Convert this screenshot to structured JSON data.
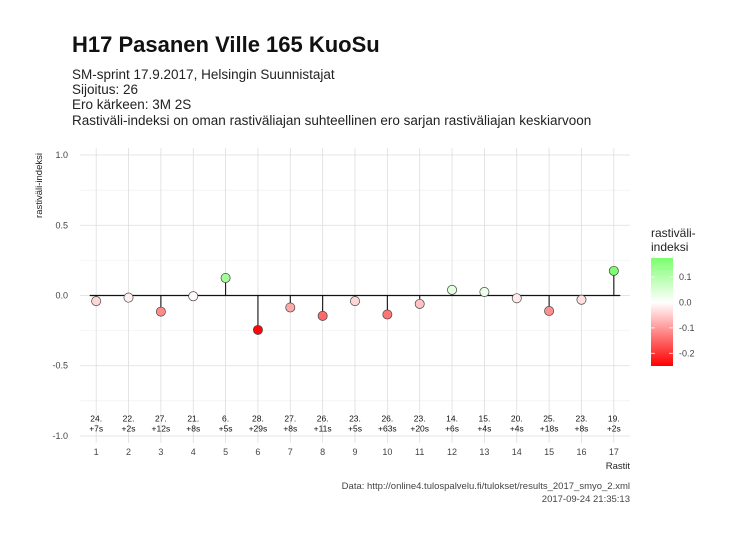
{
  "header": {
    "title": "H17 Pasanen Ville 165 KuoSu",
    "subtitle_lines": [
      "SM-sprint 17.9.2017, Helsingin Suunnistajat",
      "Sijoitus: 26",
      "Ero kärkeen: 3M 2S",
      "Rastiväli-indeksi on oman rastiväliajan suhteellinen ero sarjan rastiväliajan keskiarvoon"
    ]
  },
  "caption": {
    "source": "Data: http://online4.tulospalvelu.fi/tulokset/results_2017_smyo_2.xml",
    "timestamp": "2017-09-24 21:35:13"
  },
  "chart_data": {
    "type": "scatter",
    "style": "lollipop",
    "xlabel": "Rastit",
    "ylabel": "rastiväli-indeksi",
    "x": [
      1,
      2,
      3,
      4,
      5,
      6,
      7,
      8,
      9,
      10,
      11,
      12,
      13,
      14,
      15,
      16,
      17
    ],
    "y": [
      -0.04,
      -0.015,
      -0.115,
      -0.005,
      0.125,
      -0.245,
      -0.085,
      -0.145,
      -0.04,
      -0.135,
      -0.06,
      0.04,
      0.025,
      -0.02,
      -0.11,
      -0.03,
      0.175
    ],
    "labels_rank": [
      "24.",
      "22.",
      "27.",
      "21.",
      "6.",
      "28.",
      "27.",
      "26.",
      "23.",
      "26.",
      "23.",
      "14.",
      "15.",
      "20.",
      "25.",
      "23.",
      "19."
    ],
    "labels_diff": [
      "+7s",
      "+2s",
      "+12s",
      "+8s",
      "+5s",
      "+29s",
      "+8s",
      "+11s",
      "+5s",
      "+63s",
      "+20s",
      "+6s",
      "+4s",
      "+4s",
      "+18s",
      "+8s",
      "+2s"
    ],
    "annotation_y": -0.91,
    "xlim": [
      0.5,
      17.5
    ],
    "ylim": [
      -1.05,
      1.05
    ],
    "y_ticks": [
      -1.0,
      -0.5,
      0.0,
      0.5,
      1.0
    ],
    "y_tick_labels": [
      "-1.0",
      "-0.5",
      "0.0",
      "0.5",
      "1.0"
    ],
    "x_ticks": [
      1,
      2,
      3,
      4,
      5,
      6,
      7,
      8,
      9,
      10,
      11,
      12,
      13,
      14,
      15,
      16,
      17
    ],
    "grid": true,
    "legend": {
      "title_lines": [
        "rastiväli-",
        "indeksi"
      ],
      "placement": "right",
      "ticks": [
        0.1,
        0.0,
        -0.1,
        -0.2
      ],
      "tick_labels": [
        "0.1",
        "0.0",
        "-0.1",
        "-0.2"
      ],
      "range": [
        -0.25,
        0.175
      ]
    },
    "colors": {
      "low": "#ff0000",
      "mid": "#ffffff",
      "high": "#7cff6e",
      "point_stroke": "#444444",
      "stem": "#111111",
      "grid_major": "#dddddd",
      "grid_minor": "#eeeeee"
    }
  }
}
